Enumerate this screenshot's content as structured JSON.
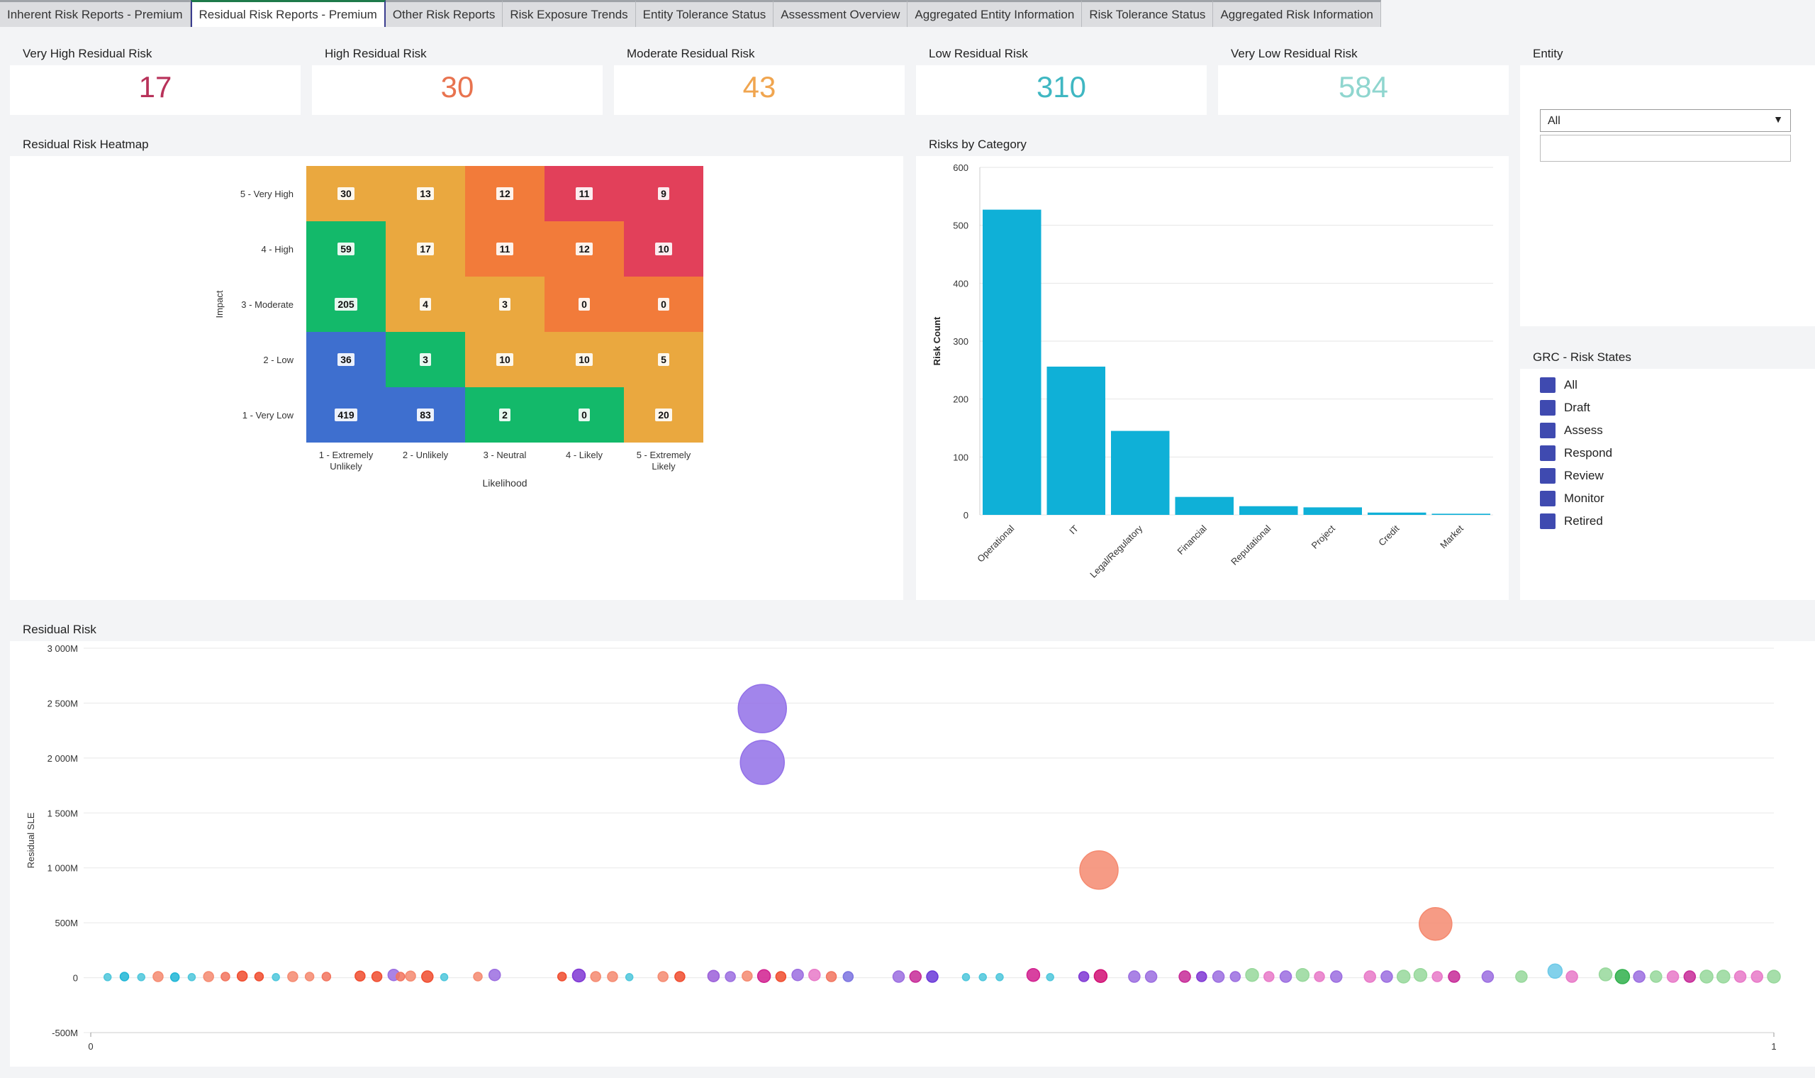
{
  "tabs": [
    {
      "label": "Inherent Risk Reports - Premium",
      "active": false
    },
    {
      "label": "Residual Risk Reports - Premium",
      "active": true
    },
    {
      "label": "Other Risk Reports",
      "active": false
    },
    {
      "label": "Risk Exposure Trends",
      "active": false
    },
    {
      "label": "Entity Tolerance Status",
      "active": false
    },
    {
      "label": "Assessment Overview",
      "active": false
    },
    {
      "label": "Aggregated Entity Information",
      "active": false
    },
    {
      "label": "Risk Tolerance Status",
      "active": false
    },
    {
      "label": "Aggregated Risk Information",
      "active": false
    }
  ],
  "kpis": [
    {
      "label": "Very High Residual Risk",
      "value": "17",
      "color": "#b8325a"
    },
    {
      "label": "High Residual Risk",
      "value": "30",
      "color": "#e8734f"
    },
    {
      "label": "Moderate Residual Risk",
      "value": "43",
      "color": "#f0a54f"
    },
    {
      "label": "Low Residual Risk",
      "value": "310",
      "color": "#3fb7c2"
    },
    {
      "label": "Very Low Residual Risk",
      "value": "584",
      "color": "#8fd6cf"
    }
  ],
  "entity": {
    "title": "Entity",
    "selected": "All",
    "arrow_icon": "dropdown-arrow-icon"
  },
  "risk_states": {
    "title": "GRC - Risk States",
    "items": [
      "All",
      "Draft",
      "Assess",
      "Respond",
      "Review",
      "Monitor",
      "Retired"
    ],
    "checkbox_color": "#3f4ab0"
  },
  "heatmap": {
    "title": "Residual Risk Heatmap",
    "chart_data": {
      "type": "heatmap",
      "ylabel": "Impact",
      "xlabel": "Likelihood",
      "y_categories": [
        "5 - Very High",
        "4 - High",
        "3 - Moderate",
        "2 - Low",
        "1 - Very Low"
      ],
      "x_categories": [
        [
          "1 - Extremely",
          "Unlikely"
        ],
        [
          "2 - Unlikely"
        ],
        [
          "3 - Neutral"
        ],
        [
          "4 - Likely"
        ],
        [
          "5 - Extremely",
          "Likely"
        ]
      ],
      "values": [
        [
          30,
          13,
          12,
          11,
          9
        ],
        [
          59,
          17,
          11,
          12,
          10
        ],
        [
          205,
          4,
          3,
          0,
          0
        ],
        [
          36,
          3,
          10,
          10,
          5
        ],
        [
          419,
          83,
          2,
          0,
          20
        ]
      ],
      "colors": [
        [
          "#eaa83f",
          "#eaa83f",
          "#f27b3a",
          "#e2405a",
          "#e2405a"
        ],
        [
          "#13b96a",
          "#eaa83f",
          "#f27b3a",
          "#f27b3a",
          "#e2405a"
        ],
        [
          "#13b96a",
          "#eaa83f",
          "#eaa83f",
          "#f27b3a",
          "#f27b3a"
        ],
        [
          "#3e6fcf",
          "#13b96a",
          "#eaa83f",
          "#eaa83f",
          "#eaa83f"
        ],
        [
          "#3e6fcf",
          "#3e6fcf",
          "#13b96a",
          "#13b96a",
          "#eaa83f"
        ]
      ]
    }
  },
  "category": {
    "title": "Risks by Category",
    "chart_data": {
      "type": "bar",
      "categories": [
        "Operational",
        "IT",
        "Legal/Regulatory",
        "Financial",
        "Reputational",
        "Project",
        "Credit",
        "Market"
      ],
      "values": [
        527,
        256,
        145,
        31,
        15,
        13,
        4,
        2
      ],
      "ylabel": "Risk Count",
      "ylim": [
        0,
        600
      ],
      "yticks": [
        0,
        100,
        200,
        300,
        400,
        500,
        600
      ],
      "color": "#0fb0d7",
      "grid": true
    }
  },
  "residual": {
    "title": "Residual Risk",
    "chart_data": {
      "type": "scatter",
      "ylabel": "Residual SLE",
      "ylim": [
        -500,
        3000
      ],
      "yticks": [
        {
          "v": 3000,
          "label": "3 000M"
        },
        {
          "v": 2500,
          "label": "2 500M"
        },
        {
          "v": 2000,
          "label": "2 000M"
        },
        {
          "v": 1500,
          "label": "1 500M"
        },
        {
          "v": 1000,
          "label": "1 000M"
        },
        {
          "v": 500,
          "label": "500M"
        },
        {
          "v": 0,
          "label": "0"
        },
        {
          "v": -500,
          "label": "-500M"
        }
      ],
      "xlim": [
        0,
        1
      ],
      "xticks": [
        {
          "v": 0,
          "label": "0"
        },
        {
          "v": 1,
          "label": "1"
        }
      ],
      "grid": true,
      "points": [
        [
          0.01,
          5,
          5,
          "#4ec7dc"
        ],
        [
          0.02,
          10,
          6,
          "#1fb6d6"
        ],
        [
          0.03,
          5,
          5,
          "#4ec7dc"
        ],
        [
          0.04,
          10,
          7,
          "#f58a70"
        ],
        [
          0.05,
          5,
          6,
          "#1fb6d6"
        ],
        [
          0.06,
          5,
          5,
          "#4ec7dc"
        ],
        [
          0.07,
          10,
          7,
          "#f58a70"
        ],
        [
          0.08,
          10,
          6,
          "#f2745e"
        ],
        [
          0.09,
          15,
          7,
          "#f04c2e"
        ],
        [
          0.1,
          10,
          6,
          "#f04c2e"
        ],
        [
          0.11,
          5,
          5,
          "#4ec7dc"
        ],
        [
          0.12,
          10,
          7,
          "#f58a70"
        ],
        [
          0.13,
          10,
          6,
          "#f58a70"
        ],
        [
          0.14,
          10,
          6,
          "#f2745e"
        ],
        [
          0.16,
          15,
          7,
          "#f04c2e"
        ],
        [
          0.17,
          10,
          7,
          "#f04c2e"
        ],
        [
          0.18,
          25,
          8,
          "#9b6de0"
        ],
        [
          0.184,
          10,
          6,
          "#f2745e"
        ],
        [
          0.19,
          15,
          7,
          "#f58a70"
        ],
        [
          0.2,
          10,
          8,
          "#f04c2e"
        ],
        [
          0.21,
          5,
          5,
          "#4ec7dc"
        ],
        [
          0.23,
          10,
          6,
          "#f58a70"
        ],
        [
          0.24,
          25,
          8,
          "#9b6de0"
        ],
        [
          0.28,
          10,
          6,
          "#f04c2e"
        ],
        [
          0.29,
          20,
          9,
          "#7f37d4"
        ],
        [
          0.3,
          10,
          7,
          "#f58a70"
        ],
        [
          0.31,
          10,
          7,
          "#f58a70"
        ],
        [
          0.32,
          5,
          5,
          "#4ec7dc"
        ],
        [
          0.34,
          10,
          7,
          "#f58a70"
        ],
        [
          0.35,
          10,
          7,
          "#f04c2e"
        ],
        [
          0.37,
          15,
          8,
          "#9b5fd9"
        ],
        [
          0.38,
          10,
          7,
          "#9b6de0"
        ],
        [
          0.39,
          15,
          7,
          "#f58a70"
        ],
        [
          0.4,
          15,
          9,
          "#d1208f"
        ],
        [
          0.41,
          10,
          7,
          "#f04c2e"
        ],
        [
          0.42,
          25,
          8,
          "#9b6de0"
        ],
        [
          0.43,
          25,
          8,
          "#e879c8"
        ],
        [
          0.44,
          10,
          7,
          "#f2745e"
        ],
        [
          0.45,
          10,
          7,
          "#7b73e0"
        ],
        [
          0.48,
          10,
          8,
          "#9b6de0"
        ],
        [
          0.49,
          10,
          8,
          "#c72a98"
        ],
        [
          0.5,
          10,
          8,
          "#6a38d8"
        ],
        [
          0.52,
          5,
          5,
          "#4ec7dc"
        ],
        [
          0.53,
          5,
          5,
          "#4ec7dc"
        ],
        [
          0.54,
          5,
          5,
          "#4ec7dc"
        ],
        [
          0.56,
          25,
          9,
          "#d1208f"
        ],
        [
          0.57,
          5,
          5,
          "#4ec7dc"
        ],
        [
          0.59,
          10,
          7,
          "#7f37d4"
        ],
        [
          0.6,
          15,
          9,
          "#d10f74"
        ],
        [
          0.62,
          10,
          8,
          "#9b6de0"
        ],
        [
          0.63,
          10,
          8,
          "#9b6de0"
        ],
        [
          0.65,
          10,
          8,
          "#c72a98"
        ],
        [
          0.66,
          10,
          7,
          "#7f37d4"
        ],
        [
          0.67,
          10,
          8,
          "#9b6de0"
        ],
        [
          0.68,
          10,
          7,
          "#9b6de0"
        ],
        [
          0.69,
          25,
          9,
          "#97d89b"
        ],
        [
          0.7,
          10,
          7,
          "#e879c8"
        ],
        [
          0.71,
          10,
          8,
          "#9b6de0"
        ],
        [
          0.72,
          25,
          9,
          "#97d89b"
        ],
        [
          0.73,
          10,
          7,
          "#e879c8"
        ],
        [
          0.74,
          10,
          8,
          "#9b6de0"
        ],
        [
          0.76,
          10,
          8,
          "#e879c8"
        ],
        [
          0.77,
          10,
          8,
          "#9b6de0"
        ],
        [
          0.78,
          10,
          9,
          "#97d89b"
        ],
        [
          0.79,
          25,
          9,
          "#97d89b"
        ],
        [
          0.8,
          10,
          7,
          "#e879c8"
        ],
        [
          0.81,
          10,
          8,
          "#c72a98"
        ],
        [
          0.83,
          10,
          8,
          "#9b6de0"
        ],
        [
          0.85,
          10,
          8,
          "#97d89b"
        ],
        [
          0.87,
          60,
          10,
          "#6cc9e8"
        ],
        [
          0.88,
          10,
          8,
          "#e879c8"
        ],
        [
          0.9,
          30,
          9,
          "#97d89b"
        ],
        [
          0.91,
          10,
          10,
          "#30b04c"
        ],
        [
          0.92,
          10,
          8,
          "#9b6de0"
        ],
        [
          0.93,
          10,
          8,
          "#97d89b"
        ],
        [
          0.94,
          10,
          8,
          "#e879c8"
        ],
        [
          0.95,
          10,
          8,
          "#c72a98"
        ],
        [
          0.96,
          10,
          9,
          "#97d89b"
        ],
        [
          0.97,
          10,
          9,
          "#97d89b"
        ],
        [
          0.98,
          10,
          8,
          "#e879c8"
        ],
        [
          0.99,
          10,
          8,
          "#e879c8"
        ],
        [
          1.0,
          10,
          9,
          "#97d89b"
        ],
        [
          0.399,
          2450,
          34,
          "#9270e8"
        ],
        [
          0.399,
          1960,
          31,
          "#9270e8"
        ],
        [
          0.599,
          980,
          27,
          "#f58a70"
        ],
        [
          0.799,
          490,
          23,
          "#f58a70"
        ]
      ]
    }
  }
}
